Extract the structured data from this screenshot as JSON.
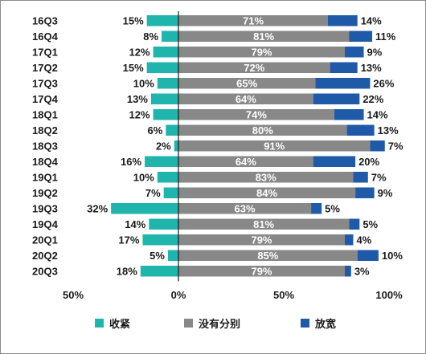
{
  "chart_data": {
    "type": "bar",
    "orientation": "horizontal",
    "stacked": true,
    "categories": [
      "16Q3",
      "16Q4",
      "17Q1",
      "17Q2",
      "17Q3",
      "17Q4",
      "18Q1",
      "18Q2",
      "18Q3",
      "18Q4",
      "19Q1",
      "19Q2",
      "19Q3",
      "19Q4",
      "20Q1",
      "20Q2",
      "20Q3"
    ],
    "series": [
      {
        "name": "收紧",
        "color": "#1fb5ad",
        "direction": "negative",
        "values": [
          15,
          8,
          12,
          15,
          10,
          13,
          12,
          6,
          2,
          16,
          10,
          7,
          32,
          14,
          17,
          5,
          18
        ],
        "labels": [
          "15%",
          "8%",
          "12%",
          "15%",
          "10%",
          "13%",
          "12%",
          "6%",
          "2%",
          "16%",
          "10%",
          "7%",
          "32%",
          "14%",
          "17%",
          "5%",
          "18%"
        ]
      },
      {
        "name": "没有分别",
        "color": "#888888",
        "direction": "positive",
        "values": [
          71,
          81,
          79,
          72,
          65,
          64,
          74,
          80,
          91,
          64,
          83,
          84,
          63,
          81,
          79,
          85,
          79
        ],
        "labels": [
          "71%",
          "81%",
          "79%",
          "72%",
          "65%",
          "64%",
          "74%",
          "80%",
          "91%",
          "64%",
          "83%",
          "84%",
          "63%",
          "81%",
          "79%",
          "85%",
          "79%"
        ]
      },
      {
        "name": "放宽",
        "color": "#1f5aa8",
        "direction": "positive",
        "values": [
          14,
          11,
          9,
          13,
          26,
          22,
          14,
          13,
          7,
          20,
          7,
          9,
          5,
          5,
          4,
          10,
          3
        ],
        "labels": [
          "14%",
          "11%",
          "9%",
          "13%",
          "26%",
          "22%",
          "14%",
          "13%",
          "7%",
          "20%",
          "7%",
          "9%",
          "5%",
          "5%",
          "4%",
          "10%",
          "3%"
        ]
      }
    ],
    "xlim": [
      -50,
      100
    ],
    "xticks": [
      -50,
      0,
      50,
      100
    ],
    "xtick_labels": [
      "50%",
      "0%",
      "50%",
      "100%"
    ],
    "legend_position": "bottom",
    "grid": false,
    "title": "",
    "xlabel": "",
    "ylabel": ""
  }
}
